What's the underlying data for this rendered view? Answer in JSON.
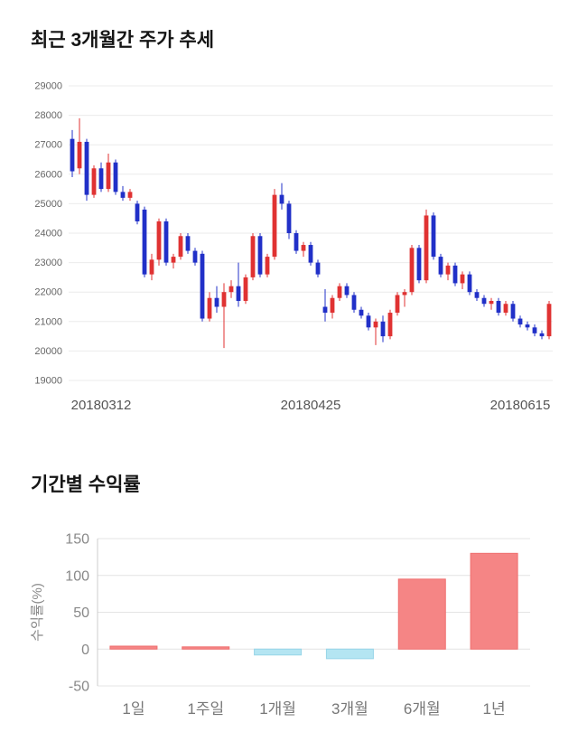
{
  "page": {
    "price_section_title": "최근 3개월간 주가 추세",
    "returns_section_title": "기간별 수익률"
  },
  "chart_data": [
    {
      "type": "candlestick",
      "title": "최근 3개월간 주가 추세",
      "ylim": [
        19000,
        29000
      ],
      "y_ticks": [
        19000,
        20000,
        21000,
        22000,
        23000,
        24000,
        25000,
        26000,
        27000,
        28000,
        29000
      ],
      "x_tick_labels": [
        "20180312",
        "20180425",
        "20180615"
      ],
      "up_color": "#e03232",
      "down_color": "#2130c8",
      "grid_color": "#ebebeb",
      "candles": [
        [
          27200,
          27500,
          25900,
          26100
        ],
        [
          26200,
          27900,
          26000,
          27100
        ],
        [
          27100,
          27200,
          25100,
          25300
        ],
        [
          25300,
          26300,
          25200,
          26200
        ],
        [
          26200,
          26400,
          25400,
          25500
        ],
        [
          25500,
          26700,
          25400,
          26400
        ],
        [
          26400,
          26500,
          25300,
          25400
        ],
        [
          25400,
          25600,
          25100,
          25200
        ],
        [
          25200,
          25500,
          25100,
          25400
        ],
        [
          25000,
          25100,
          24300,
          24400
        ],
        [
          24800,
          24900,
          22500,
          22600
        ],
        [
          22600,
          23300,
          22400,
          23100
        ],
        [
          23100,
          24500,
          22900,
          24400
        ],
        [
          24400,
          24500,
          22900,
          23000
        ],
        [
          23000,
          23300,
          22800,
          23200
        ],
        [
          23200,
          24000,
          23100,
          23900
        ],
        [
          23900,
          24000,
          23300,
          23400
        ],
        [
          23400,
          23500,
          22900,
          23000
        ],
        [
          23300,
          23400,
          21000,
          21100
        ],
        [
          21100,
          22000,
          21000,
          21800
        ],
        [
          21800,
          22200,
          21300,
          21500
        ],
        [
          21500,
          22300,
          20100,
          22000
        ],
        [
          22000,
          22400,
          21800,
          22200
        ],
        [
          22200,
          23000,
          21500,
          21700
        ],
        [
          21700,
          22600,
          21600,
          22500
        ],
        [
          22500,
          24000,
          22400,
          23900
        ],
        [
          23900,
          24000,
          22500,
          22600
        ],
        [
          22600,
          23300,
          22500,
          23200
        ],
        [
          23200,
          25500,
          23100,
          25300
        ],
        [
          25300,
          25700,
          24800,
          25000
        ],
        [
          25000,
          25100,
          23800,
          24000
        ],
        [
          24000,
          24100,
          23300,
          23400
        ],
        [
          23400,
          23700,
          23200,
          23600
        ],
        [
          23600,
          23700,
          22900,
          23000
        ],
        [
          23000,
          23100,
          22500,
          22600
        ],
        [
          21500,
          22100,
          21000,
          21300
        ],
        [
          21300,
          21900,
          21100,
          21800
        ],
        [
          21800,
          22300,
          21700,
          22200
        ],
        [
          22200,
          22300,
          21800,
          21900
        ],
        [
          21900,
          22000,
          21300,
          21400
        ],
        [
          21400,
          21500,
          21100,
          21200
        ],
        [
          21200,
          21300,
          20700,
          20800
        ],
        [
          20800,
          21100,
          20200,
          21000
        ],
        [
          21000,
          21200,
          20300,
          20500
        ],
        [
          20500,
          21400,
          20400,
          21300
        ],
        [
          21300,
          22000,
          21200,
          21900
        ],
        [
          21900,
          22100,
          21500,
          22000
        ],
        [
          22000,
          23600,
          21900,
          23500
        ],
        [
          23500,
          23600,
          22300,
          22400
        ],
        [
          22400,
          24800,
          22300,
          24600
        ],
        [
          24600,
          24700,
          23100,
          23200
        ],
        [
          23200,
          23300,
          22500,
          22600
        ],
        [
          22600,
          23000,
          22400,
          22900
        ],
        [
          22900,
          23000,
          22200,
          22300
        ],
        [
          22300,
          22700,
          22100,
          22600
        ],
        [
          22600,
          22700,
          21900,
          22000
        ],
        [
          22000,
          22100,
          21700,
          21800
        ],
        [
          21800,
          21900,
          21500,
          21600
        ],
        [
          21600,
          21800,
          21400,
          21700
        ],
        [
          21700,
          21800,
          21200,
          21300
        ],
        [
          21300,
          21700,
          21200,
          21600
        ],
        [
          21600,
          21700,
          21000,
          21100
        ],
        [
          21100,
          21200,
          20800,
          20900
        ],
        [
          20900,
          21000,
          20700,
          20800
        ],
        [
          20800,
          20900,
          20500,
          20600
        ],
        [
          20600,
          20700,
          20400,
          20500
        ],
        [
          20500,
          21700,
          20400,
          21600
        ]
      ]
    },
    {
      "type": "bar",
      "title": "기간별 수익률",
      "ylabel": "수익률(%)",
      "categories": [
        "1일",
        "1주일",
        "1개월",
        "3개월",
        "6개월",
        "1년"
      ],
      "values": [
        4,
        3,
        -8,
        -13,
        95,
        130
      ],
      "ylim": [
        -50,
        150
      ],
      "y_ticks": [
        -50,
        0,
        50,
        100,
        150
      ],
      "positive_color": "#f58585",
      "positive_stroke": "#ef6e6e",
      "negative_color": "#b4e5f2",
      "negative_stroke": "#97d5e8",
      "grid_color": "#e4e4e4",
      "axis_color": "#cccccc"
    }
  ]
}
